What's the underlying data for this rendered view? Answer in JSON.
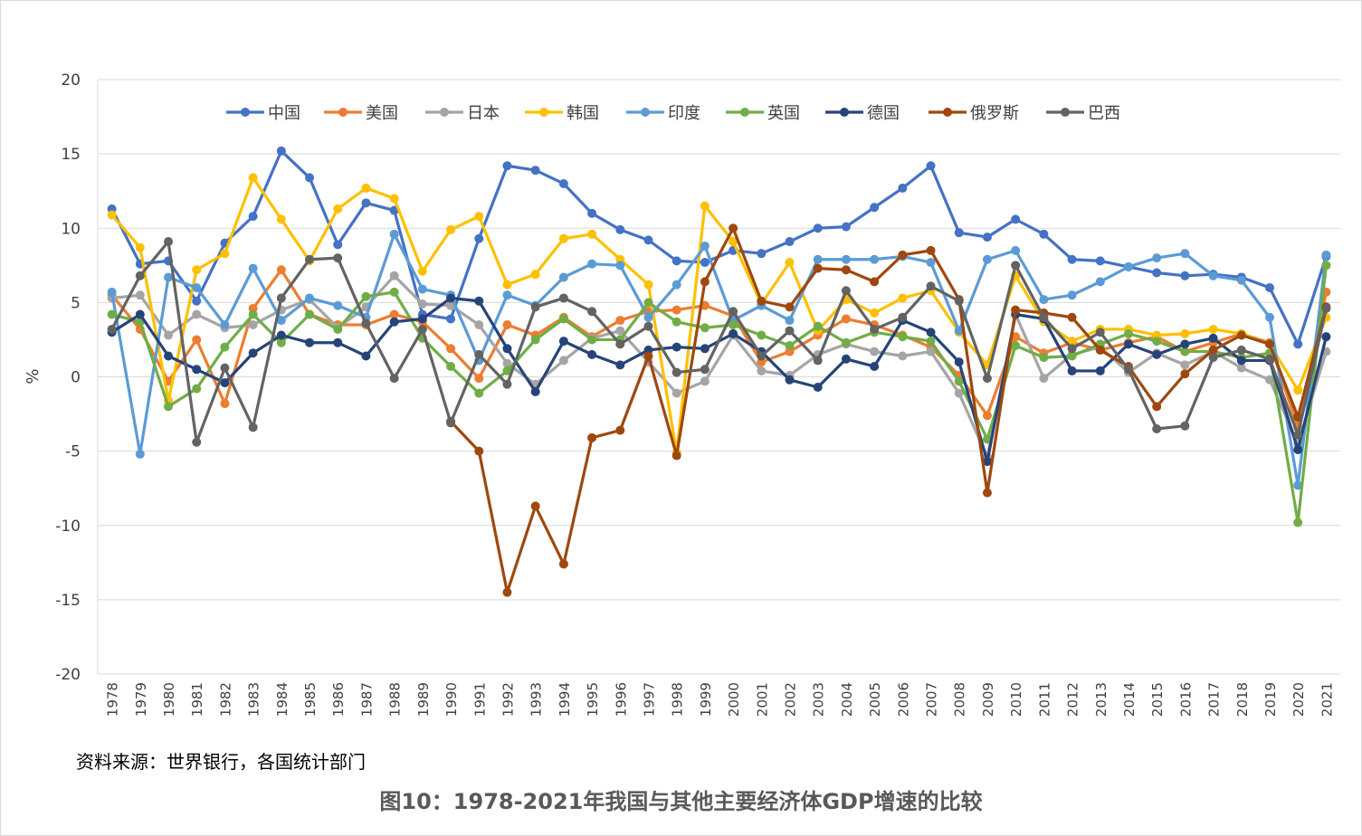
{
  "chart_data": {
    "type": "line",
    "ylabel": "%",
    "ylim": [
      -20,
      20
    ],
    "yticks": [
      "20",
      "15",
      "10",
      "5",
      "0",
      "-5",
      "-10",
      "-15",
      "-20"
    ],
    "legend_position": "top",
    "grid": true,
    "x": [
      "1978",
      "1979",
      "1980",
      "1981",
      "1982",
      "1983",
      "1984",
      "1985",
      "1986",
      "1987",
      "1988",
      "1989",
      "1990",
      "1991",
      "1992",
      "1993",
      "1994",
      "1995",
      "1996",
      "1997",
      "1998",
      "1999",
      "2000",
      "2001",
      "2002",
      "2003",
      "2004",
      "2005",
      "2006",
      "2007",
      "2008",
      "2009",
      "2010",
      "2011",
      "2012",
      "2013",
      "2014",
      "2015",
      "2016",
      "2017",
      "2018",
      "2019",
      "2020",
      "2021"
    ],
    "series": [
      {
        "name": "中国",
        "color": "#4472c4",
        "values": [
          11.3,
          7.6,
          7.8,
          5.1,
          9.0,
          10.8,
          15.2,
          13.4,
          8.9,
          11.7,
          11.2,
          4.2,
          3.9,
          9.3,
          14.2,
          13.9,
          13.0,
          11.0,
          9.9,
          9.2,
          7.8,
          7.7,
          8.5,
          8.3,
          9.1,
          10.0,
          10.1,
          11.4,
          12.7,
          14.2,
          9.7,
          9.4,
          10.6,
          9.6,
          7.9,
          7.8,
          7.4,
          7.0,
          6.8,
          6.9,
          6.7,
          6.0,
          2.2,
          8.1
        ]
      },
      {
        "name": "美国",
        "color": "#ed7d31",
        "values": [
          5.5,
          3.2,
          -0.3,
          2.5,
          -1.8,
          4.6,
          7.2,
          4.2,
          3.5,
          3.5,
          4.2,
          3.7,
          1.9,
          -0.1,
          3.5,
          2.8,
          4.0,
          2.7,
          3.8,
          4.4,
          4.5,
          4.8,
          4.1,
          1.0,
          1.7,
          2.8,
          3.9,
          3.5,
          2.8,
          2.0,
          0.1,
          -2.6,
          2.7,
          1.6,
          2.3,
          1.8,
          2.3,
          2.7,
          1.7,
          2.3,
          2.9,
          2.3,
          -3.4,
          5.7
        ]
      },
      {
        "name": "日本",
        "color": "#a5a5a5",
        "values": [
          5.3,
          5.5,
          2.8,
          4.2,
          3.3,
          3.5,
          4.5,
          5.2,
          3.3,
          4.7,
          6.8,
          4.9,
          4.8,
          3.5,
          0.9,
          -0.5,
          1.1,
          2.6,
          3.1,
          1.0,
          -1.1,
          -0.3,
          2.8,
          0.4,
          0.1,
          1.5,
          2.2,
          1.7,
          1.4,
          1.7,
          -1.1,
          -5.4,
          4.2,
          -0.1,
          1.5,
          2.0,
          0.3,
          1.6,
          0.8,
          1.7,
          0.6,
          -0.2,
          -4.5,
          1.7
        ]
      },
      {
        "name": "韩国",
        "color": "#ffc000",
        "values": [
          10.9,
          8.7,
          -1.6,
          7.2,
          8.3,
          13.4,
          10.6,
          7.8,
          11.3,
          12.7,
          12.0,
          7.1,
          9.9,
          10.8,
          6.2,
          6.9,
          9.3,
          9.6,
          7.9,
          6.2,
          -5.1,
          11.5,
          9.1,
          4.9,
          7.7,
          3.1,
          5.2,
          4.3,
          5.3,
          5.8,
          3.0,
          0.8,
          6.8,
          3.7,
          2.4,
          3.2,
          3.2,
          2.8,
          2.9,
          3.2,
          2.9,
          2.2,
          -0.9,
          4.0
        ]
      },
      {
        "name": "印度",
        "color": "#5b9bd5",
        "values": [
          5.7,
          -5.2,
          6.7,
          6.0,
          3.5,
          7.3,
          3.8,
          5.3,
          4.8,
          4.0,
          9.6,
          5.9,
          5.5,
          1.1,
          5.5,
          4.8,
          6.7,
          7.6,
          7.5,
          4.0,
          6.2,
          8.8,
          3.8,
          4.8,
          3.8,
          7.9,
          7.9,
          7.9,
          8.1,
          7.7,
          3.1,
          7.9,
          8.5,
          5.2,
          5.5,
          6.4,
          7.4,
          8.0,
          8.3,
          6.8,
          6.5,
          4.0,
          -7.3,
          8.2
        ]
      },
      {
        "name": "英国",
        "color": "#70ad47",
        "values": [
          4.2,
          3.7,
          -2.0,
          -0.8,
          2.0,
          4.2,
          2.3,
          4.2,
          3.2,
          5.4,
          5.7,
          2.6,
          0.7,
          -1.1,
          0.4,
          2.5,
          3.9,
          2.5,
          2.5,
          5.0,
          3.7,
          3.3,
          3.5,
          2.8,
          2.1,
          3.4,
          2.3,
          3.0,
          2.7,
          2.4,
          -0.3,
          -4.2,
          2.1,
          1.3,
          1.4,
          2.2,
          2.9,
          2.4,
          1.7,
          1.7,
          1.3,
          1.6,
          -9.8,
          7.5
        ]
      },
      {
        "name": "德国",
        "color": "#264478",
        "values": [
          3.0,
          4.2,
          1.4,
          0.5,
          -0.4,
          1.6,
          2.8,
          2.3,
          2.3,
          1.4,
          3.7,
          3.9,
          5.3,
          5.1,
          1.9,
          -1.0,
          2.4,
          1.5,
          0.8,
          1.8,
          2.0,
          1.9,
          2.9,
          1.7,
          -0.2,
          -0.7,
          1.2,
          0.7,
          3.8,
          3.0,
          1.0,
          -5.7,
          4.2,
          3.9,
          0.4,
          0.4,
          2.2,
          1.5,
          2.2,
          2.6,
          1.1,
          1.1,
          -4.9,
          2.7
        ]
      },
      {
        "name": "俄罗斯",
        "color": "#9e480e",
        "values": [
          null,
          null,
          null,
          null,
          null,
          null,
          null,
          null,
          null,
          null,
          null,
          null,
          -3.0,
          -5.0,
          -14.5,
          -8.7,
          -12.6,
          -4.1,
          -3.6,
          1.4,
          -5.3,
          6.4,
          10.0,
          5.1,
          4.7,
          7.3,
          7.2,
          6.4,
          8.2,
          8.5,
          5.2,
          -7.8,
          4.5,
          4.3,
          4.0,
          1.8,
          0.7,
          -2.0,
          0.2,
          1.8,
          2.8,
          2.2,
          -2.7,
          4.7
        ]
      },
      {
        "name": "巴西",
        "color": "#636363",
        "values": [
          3.2,
          6.8,
          9.1,
          -4.4,
          0.6,
          -3.4,
          5.3,
          7.9,
          8.0,
          3.6,
          -0.1,
          3.2,
          -3.1,
          1.5,
          -0.5,
          4.7,
          5.3,
          4.4,
          2.2,
          3.4,
          0.3,
          0.5,
          4.4,
          1.4,
          3.1,
          1.1,
          5.8,
          3.2,
          4.0,
          6.1,
          5.1,
          -0.1,
          7.5,
          4.0,
          1.9,
          3.0,
          0.5,
          -3.5,
          -3.3,
          1.3,
          1.8,
          1.2,
          -3.9,
          4.6
        ]
      }
    ]
  },
  "footer": {
    "source": "资料来源：世界银行，各国统计部门",
    "caption": "图10：1978-2021年我国与其他主要经济体GDP增速的比较"
  }
}
